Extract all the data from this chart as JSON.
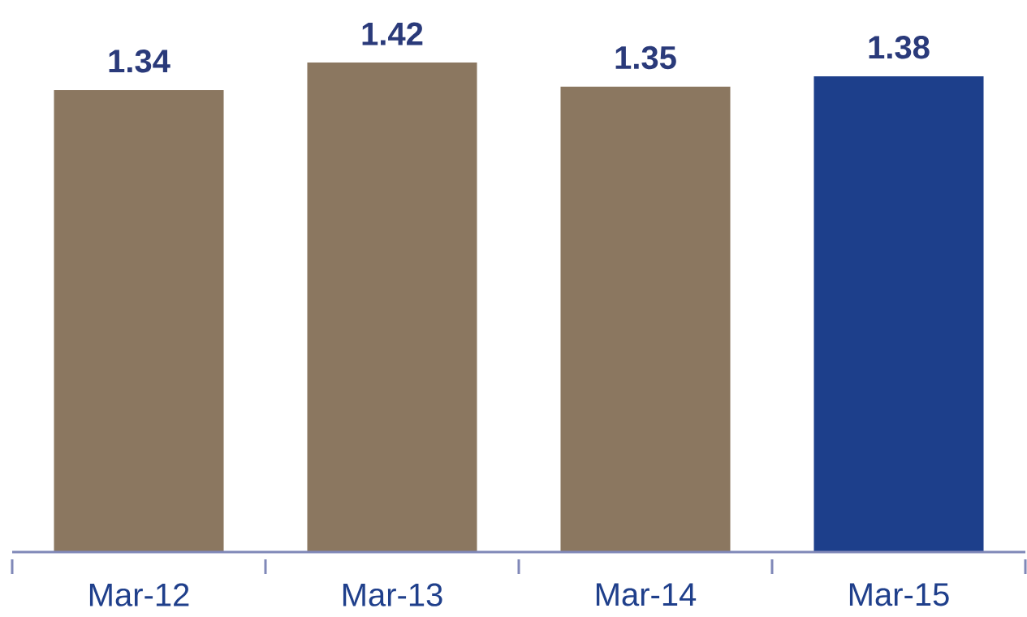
{
  "chart_data": {
    "type": "bar",
    "categories": [
      "Mar-12",
      "Mar-13",
      "Mar-14",
      "Mar-15"
    ],
    "values": [
      1.34,
      1.42,
      1.35,
      1.38
    ],
    "colors": [
      "#8b7760",
      "#8b7760",
      "#8b7760",
      "#1d3f8b"
    ],
    "tick_labels": "x",
    "data_labels": true
  }
}
